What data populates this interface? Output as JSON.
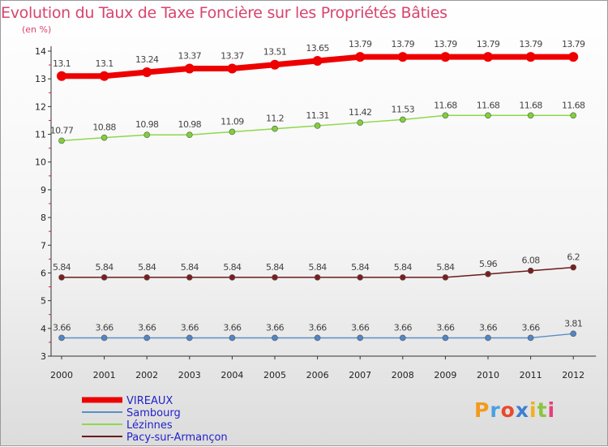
{
  "title": "Evolution du Taux de Taxe Foncière sur les Propriétés Bâties",
  "subtitle": "(en %)",
  "logo": "Proxiti",
  "chart_data": {
    "type": "line",
    "title": "Evolution du Taux de Taxe Foncière sur les Propriétés Bâties",
    "ylabel": "(en %)",
    "xlabel": "",
    "ylim": [
      3,
      14
    ],
    "yticks": [
      3,
      4,
      5,
      6,
      7,
      8,
      9,
      10,
      11,
      12,
      13,
      14
    ],
    "x": [
      "2000",
      "2001",
      "2002",
      "2003",
      "2004",
      "2005",
      "2006",
      "2007",
      "2008",
      "2009",
      "2010",
      "2011",
      "2012"
    ],
    "series": [
      {
        "name": "VIREAUX",
        "color": "#ee0000",
        "values": [
          13.1,
          13.1,
          13.24,
          13.37,
          13.37,
          13.51,
          13.65,
          13.79,
          13.79,
          13.79,
          13.79,
          13.79,
          13.79
        ],
        "labels": [
          "13.1",
          "13.1",
          "13.24",
          "13.37",
          "13.37",
          "13.51",
          "13.65",
          "13.79",
          "13.79",
          "13.79",
          "13.79",
          "13.79",
          "13.79"
        ]
      },
      {
        "name": "Sambourg",
        "color": "#5a8fc8",
        "values": [
          3.66,
          3.66,
          3.66,
          3.66,
          3.66,
          3.66,
          3.66,
          3.66,
          3.66,
          3.66,
          3.66,
          3.66,
          3.81
        ],
        "labels": [
          "3.66",
          "3.66",
          "3.66",
          "3.66",
          "3.66",
          "3.66",
          "3.66",
          "3.66",
          "3.66",
          "3.66",
          "3.66",
          "3.66",
          "3.81"
        ]
      },
      {
        "name": "Lézinnes",
        "color": "#8ed84a",
        "values": [
          10.77,
          10.88,
          10.98,
          10.98,
          11.09,
          11.2,
          11.31,
          11.42,
          11.53,
          11.68,
          11.68,
          11.68,
          11.68
        ],
        "labels": [
          "10.77",
          "10.88",
          "10.98",
          "10.98",
          "11.09",
          "11.2",
          "11.31",
          "11.42",
          "11.53",
          "11.68",
          "11.68",
          "11.68",
          "11.68"
        ]
      },
      {
        "name": "Pacy-sur-Armançon",
        "color": "#6b1a1a",
        "values": [
          5.84,
          5.84,
          5.84,
          5.84,
          5.84,
          5.84,
          5.84,
          5.84,
          5.84,
          5.84,
          5.96,
          6.08,
          6.2
        ],
        "labels": [
          "5.84",
          "5.84",
          "5.84",
          "5.84",
          "5.84",
          "5.84",
          "5.84",
          "5.84",
          "5.84",
          "5.84",
          "5.96",
          "6.08",
          "6.2"
        ]
      }
    ]
  }
}
